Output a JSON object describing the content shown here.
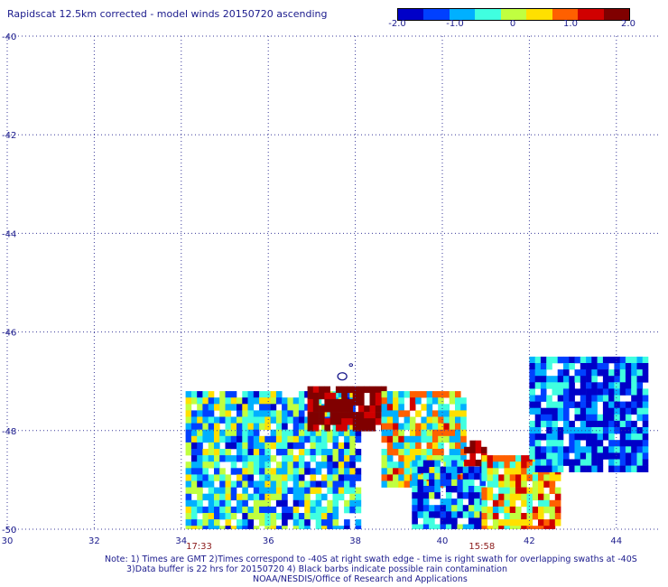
{
  "title": "Rapidscat 12.5km corrected - model winds 20150720 ascending",
  "colorbar": {
    "min": -2.0,
    "max": 2.0,
    "ticks": [
      {
        "value": -2.0,
        "label": "-2.0"
      },
      {
        "value": -1.0,
        "label": "-1.0"
      },
      {
        "value": 0.0,
        "label": "0"
      },
      {
        "value": 1.0,
        "label": "1.0"
      },
      {
        "value": 2.0,
        "label": "2.0"
      }
    ],
    "colors": [
      "#0000c8",
      "#0040ff",
      "#00b0ff",
      "#40ffe0",
      "#c0ff40",
      "#ffe000",
      "#ff6000",
      "#d00000",
      "#800000"
    ]
  },
  "time_labels": [
    {
      "label": "17:33",
      "lon": 34.4
    },
    {
      "label": "15:58",
      "lon": 40.9
    }
  ],
  "notes": [
    "Note: 1) Times are GMT 2)Times correspond to -40S at right swath edge - time is right swath for overlapping swaths at -40S",
    "3)Data buffer is 22 hrs for 20150720 4) Black barbs indicate possible rain contamination",
    "NOAA/NESDIS/Office of Research and Applications"
  ],
  "chart_data": {
    "type": "heatmap",
    "title": "Rapidscat 12.5km corrected - model winds 20150720 ascending",
    "xlim": [
      30,
      44.7
    ],
    "ylim": [
      -50,
      -40
    ],
    "x_ticks": [
      30,
      32,
      34,
      36,
      38,
      40,
      42,
      44
    ],
    "y_ticks": [
      -40,
      -42,
      -44,
      -46,
      -48,
      -50
    ],
    "grid": true,
    "colorbar_range": [
      -2.0,
      2.0
    ],
    "cell_size_deg": 0.13,
    "regions": [
      {
        "lon": [
          34.1,
          38.1
        ],
        "lat": [
          -50.0,
          -47.2
        ],
        "mean": -0.6
      },
      {
        "lon": [
          36.9,
          38.6
        ],
        "lat": [
          -48.0,
          -47.1
        ],
        "mean": 1.9
      },
      {
        "lon": [
          38.6,
          40.5
        ],
        "lat": [
          -49.1,
          -47.2
        ],
        "mean": 0.1
      },
      {
        "lon": [
          39.3,
          40.9
        ],
        "lat": [
          -50.0,
          -48.6
        ],
        "mean": -1.2
      },
      {
        "lon": [
          40.5,
          41.0
        ],
        "lat": [
          -48.6,
          -48.2
        ],
        "mean": 1.8
      },
      {
        "lon": [
          40.9,
          42.7
        ],
        "lat": [
          -50.0,
          -48.5
        ],
        "mean": 0.4
      },
      {
        "lon": [
          42.0,
          44.7
        ],
        "lat": [
          -48.8,
          -46.5
        ],
        "mean": -1.4
      }
    ]
  }
}
